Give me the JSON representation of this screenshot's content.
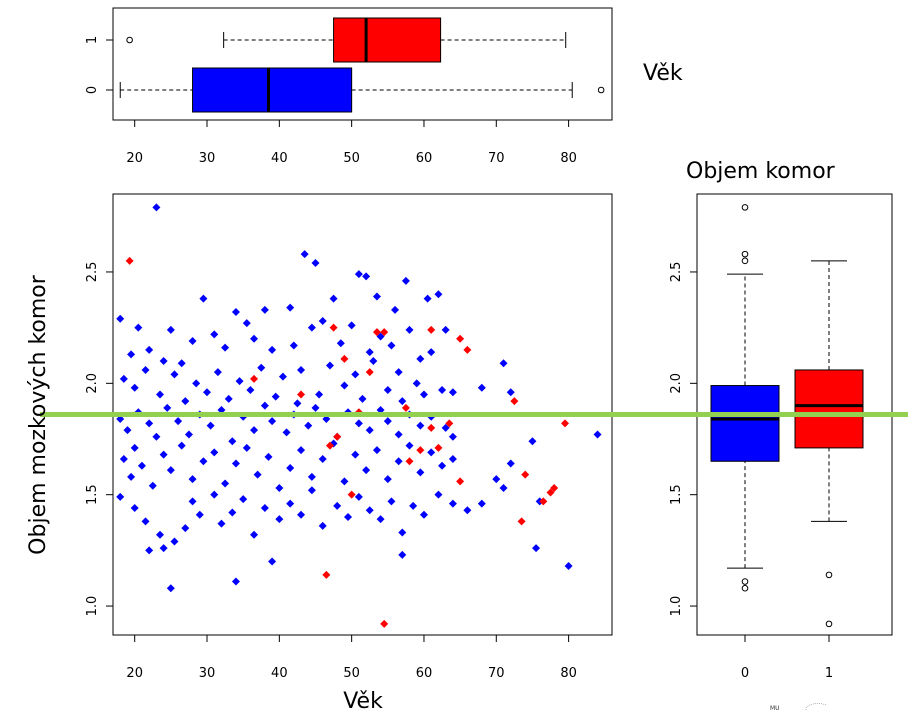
{
  "labels": {
    "top_right": "Věk",
    "right_title": "Objem komor",
    "y_label": "Objem mozkových komor",
    "x_label": "Věk",
    "logo_text": "MU"
  },
  "colors": {
    "group0": "#0000ff",
    "group1": "#ff0000",
    "reference_line": "#92d050"
  },
  "chart_data": [
    {
      "type": "box",
      "orientation": "horizontal",
      "variable": "Věk",
      "xlim": [
        17,
        86
      ],
      "xticks": [
        20,
        30,
        40,
        50,
        60,
        70,
        80
      ],
      "groups": [
        {
          "label": "0",
          "color": "#0000ff",
          "whisker_low": 18,
          "q1": 28,
          "median": 38.5,
          "q3": 50,
          "whisker_high": 80.5,
          "outliers": [
            84.5
          ]
        },
        {
          "label": "1",
          "color": "#ff0000",
          "whisker_low": 32.3,
          "q1": 47.5,
          "median": 52,
          "q3": 62.3,
          "whisker_high": 79.6,
          "outliers": [
            19.3
          ]
        }
      ]
    },
    {
      "type": "scatter",
      "xlabel": "Věk",
      "ylabel": "Objem mozkových komor",
      "xlim": [
        17,
        86
      ],
      "ylim": [
        0.87,
        2.85
      ],
      "xticks": [
        20,
        30,
        40,
        50,
        60,
        70,
        80
      ],
      "yticks": [
        1.0,
        1.5,
        2.0,
        2.5
      ],
      "reference_line_y": 1.86,
      "series": [
        {
          "group": "0",
          "color": "#0000ff",
          "points": [
            [
              23,
              2.79
            ],
            [
              43.5,
              2.58
            ],
            [
              45,
              2.54
            ],
            [
              51,
              2.49
            ],
            [
              52,
              2.48
            ],
            [
              57.5,
              2.46
            ],
            [
              18,
              2.29
            ],
            [
              20.5,
              2.25
            ],
            [
              25,
              2.24
            ],
            [
              29.5,
              2.38
            ],
            [
              34,
              2.32
            ],
            [
              38,
              2.33
            ],
            [
              41.5,
              2.34
            ],
            [
              47.5,
              2.38
            ],
            [
              53.5,
              2.39
            ],
            [
              56,
              2.33
            ],
            [
              60.5,
              2.38
            ],
            [
              62,
              2.4
            ],
            [
              19.5,
              2.13
            ],
            [
              22,
              2.15
            ],
            [
              24,
              2.1
            ],
            [
              26.5,
              2.09
            ],
            [
              28,
              2.19
            ],
            [
              31,
              2.22
            ],
            [
              32.5,
              2.16
            ],
            [
              35.5,
              2.27
            ],
            [
              36.5,
              2.2
            ],
            [
              39,
              2.15
            ],
            [
              42,
              2.17
            ],
            [
              44.5,
              2.25
            ],
            [
              46,
              2.28
            ],
            [
              48.5,
              2.18
            ],
            [
              50,
              2.26
            ],
            [
              52.5,
              2.14
            ],
            [
              54,
              2.21
            ],
            [
              55.5,
              2.17
            ],
            [
              58,
              2.24
            ],
            [
              59.5,
              2.11
            ],
            [
              61,
              2.14
            ],
            [
              63,
              2.24
            ],
            [
              18.5,
              2.02
            ],
            [
              20,
              1.98
            ],
            [
              21.5,
              2.06
            ],
            [
              23.5,
              1.95
            ],
            [
              25.5,
              2.04
            ],
            [
              27,
              1.92
            ],
            [
              28.5,
              2.0
            ],
            [
              30,
              1.96
            ],
            [
              31.5,
              2.05
            ],
            [
              33,
              1.93
            ],
            [
              34.5,
              2.01
            ],
            [
              36,
              1.97
            ],
            [
              37.5,
              2.07
            ],
            [
              39.5,
              1.94
            ],
            [
              40.5,
              2.03
            ],
            [
              42.5,
              1.91
            ],
            [
              43,
              2.06
            ],
            [
              45.5,
              1.95
            ],
            [
              47,
              2.08
            ],
            [
              49,
              1.99
            ],
            [
              50.5,
              2.04
            ],
            [
              51.5,
              1.93
            ],
            [
              53,
              2.1
            ],
            [
              55,
              1.97
            ],
            [
              56.5,
              2.05
            ],
            [
              57,
              1.92
            ],
            [
              59,
              2.0
            ],
            [
              60,
              1.95
            ],
            [
              62.5,
              1.97
            ],
            [
              64,
              1.96
            ],
            [
              68,
              1.98
            ],
            [
              71,
              2.09
            ],
            [
              72,
              1.96
            ],
            [
              18,
              1.84
            ],
            [
              19,
              1.79
            ],
            [
              20.5,
              1.87
            ],
            [
              22,
              1.82
            ],
            [
              23,
              1.76
            ],
            [
              24.5,
              1.89
            ],
            [
              26,
              1.83
            ],
            [
              27.5,
              1.77
            ],
            [
              29,
              1.86
            ],
            [
              30.5,
              1.81
            ],
            [
              32,
              1.88
            ],
            [
              33.5,
              1.74
            ],
            [
              35,
              1.85
            ],
            [
              36.5,
              1.79
            ],
            [
              38,
              1.9
            ],
            [
              39,
              1.83
            ],
            [
              41,
              1.78
            ],
            [
              42,
              1.86
            ],
            [
              44,
              1.81
            ],
            [
              45,
              1.89
            ],
            [
              46.5,
              1.84
            ],
            [
              48,
              1.76
            ],
            [
              49.5,
              1.87
            ],
            [
              51,
              1.82
            ],
            [
              52.5,
              1.79
            ],
            [
              54,
              1.88
            ],
            [
              55,
              1.83
            ],
            [
              56.5,
              1.77
            ],
            [
              58,
              1.86
            ],
            [
              59.5,
              1.81
            ],
            [
              61,
              1.85
            ],
            [
              63,
              1.8
            ],
            [
              64,
              1.76
            ],
            [
              18.5,
              1.66
            ],
            [
              19.5,
              1.58
            ],
            [
              20,
              1.71
            ],
            [
              21,
              1.63
            ],
            [
              22.5,
              1.54
            ],
            [
              24,
              1.68
            ],
            [
              25,
              1.61
            ],
            [
              26.5,
              1.72
            ],
            [
              28,
              1.57
            ],
            [
              29.5,
              1.65
            ],
            [
              31,
              1.69
            ],
            [
              32.5,
              1.55
            ],
            [
              34,
              1.64
            ],
            [
              35.5,
              1.71
            ],
            [
              37,
              1.59
            ],
            [
              38.5,
              1.67
            ],
            [
              40,
              1.53
            ],
            [
              41.5,
              1.62
            ],
            [
              43,
              1.7
            ],
            [
              44.5,
              1.58
            ],
            [
              46,
              1.66
            ],
            [
              47.5,
              1.73
            ],
            [
              49,
              1.56
            ],
            [
              50.5,
              1.68
            ],
            [
              52,
              1.61
            ],
            [
              53.5,
              1.7
            ],
            [
              55,
              1.57
            ],
            [
              56.5,
              1.65
            ],
            [
              58,
              1.72
            ],
            [
              59.5,
              1.6
            ],
            [
              61,
              1.69
            ],
            [
              62.5,
              1.63
            ],
            [
              64,
              1.66
            ],
            [
              66,
              1.43
            ],
            [
              68,
              1.46
            ],
            [
              70,
              1.57
            ],
            [
              71,
              1.53
            ],
            [
              72,
              1.64
            ],
            [
              75,
              1.74
            ],
            [
              76,
              1.47
            ],
            [
              18,
              1.49
            ],
            [
              20,
              1.44
            ],
            [
              21.5,
              1.38
            ],
            [
              22,
              1.25
            ],
            [
              23.5,
              1.32
            ],
            [
              24,
              1.26
            ],
            [
              25.5,
              1.29
            ],
            [
              27,
              1.35
            ],
            [
              28,
              1.47
            ],
            [
              29,
              1.41
            ],
            [
              31,
              1.5
            ],
            [
              32,
              1.37
            ],
            [
              33.5,
              1.42
            ],
            [
              35,
              1.48
            ],
            [
              36.5,
              1.32
            ],
            [
              38,
              1.44
            ],
            [
              40,
              1.39
            ],
            [
              41.5,
              1.46
            ],
            [
              43,
              1.41
            ],
            [
              44.5,
              1.52
            ],
            [
              46,
              1.36
            ],
            [
              48,
              1.45
            ],
            [
              49.5,
              1.4
            ],
            [
              51,
              1.49
            ],
            [
              52.5,
              1.43
            ],
            [
              54,
              1.39
            ],
            [
              55.5,
              1.47
            ],
            [
              57,
              1.33
            ],
            [
              58.5,
              1.45
            ],
            [
              60,
              1.41
            ],
            [
              62,
              1.5
            ],
            [
              64,
              1.46
            ],
            [
              25,
              1.08
            ],
            [
              34,
              1.11
            ],
            [
              39,
              1.2
            ],
            [
              57,
              1.23
            ],
            [
              75.5,
              1.26
            ],
            [
              80,
              1.18
            ],
            [
              84,
              1.77
            ]
          ]
        },
        {
          "group": "1",
          "color": "#ff0000",
          "points": [
            [
              19.3,
              2.55
            ],
            [
              47.5,
              2.25
            ],
            [
              49,
              2.11
            ],
            [
              53.5,
              2.23
            ],
            [
              54.5,
              2.23
            ],
            [
              61,
              2.24
            ],
            [
              65,
              2.2
            ],
            [
              66,
              2.15
            ],
            [
              36.5,
              2.02
            ],
            [
              43,
              1.95
            ],
            [
              47,
              1.72
            ],
            [
              48,
              1.76
            ],
            [
              50,
              1.5
            ],
            [
              51,
              1.87
            ],
            [
              52.5,
              2.05
            ],
            [
              57.5,
              1.89
            ],
            [
              58,
              1.65
            ],
            [
              59.5,
              1.7
            ],
            [
              61,
              1.8
            ],
            [
              62,
              1.71
            ],
            [
              63.5,
              1.82
            ],
            [
              65,
              1.56
            ],
            [
              72.5,
              1.92
            ],
            [
              73.5,
              1.38
            ],
            [
              74,
              1.59
            ],
            [
              76.5,
              1.47
            ],
            [
              77.5,
              1.51
            ],
            [
              78,
              1.53
            ],
            [
              79.5,
              1.82
            ],
            [
              46.5,
              1.14
            ],
            [
              54.5,
              0.92
            ]
          ]
        }
      ]
    },
    {
      "type": "box",
      "orientation": "vertical",
      "title": "Objem komor",
      "ylim": [
        0.87,
        2.85
      ],
      "yticks": [
        1.0,
        1.5,
        2.0,
        2.5
      ],
      "categories": [
        "0",
        "1"
      ],
      "groups": [
        {
          "label": "0",
          "color": "#0000ff",
          "whisker_low": 1.17,
          "q1": 1.65,
          "median": 1.84,
          "q3": 1.99,
          "whisker_high": 2.49,
          "outliers": [
            1.08,
            1.11,
            2.55,
            2.58,
            2.79
          ]
        },
        {
          "label": "1",
          "color": "#ff0000",
          "whisker_low": 1.38,
          "q1": 1.71,
          "median": 1.9,
          "q3": 2.06,
          "whisker_high": 2.55,
          "outliers": [
            0.92,
            1.14
          ]
        }
      ]
    }
  ]
}
